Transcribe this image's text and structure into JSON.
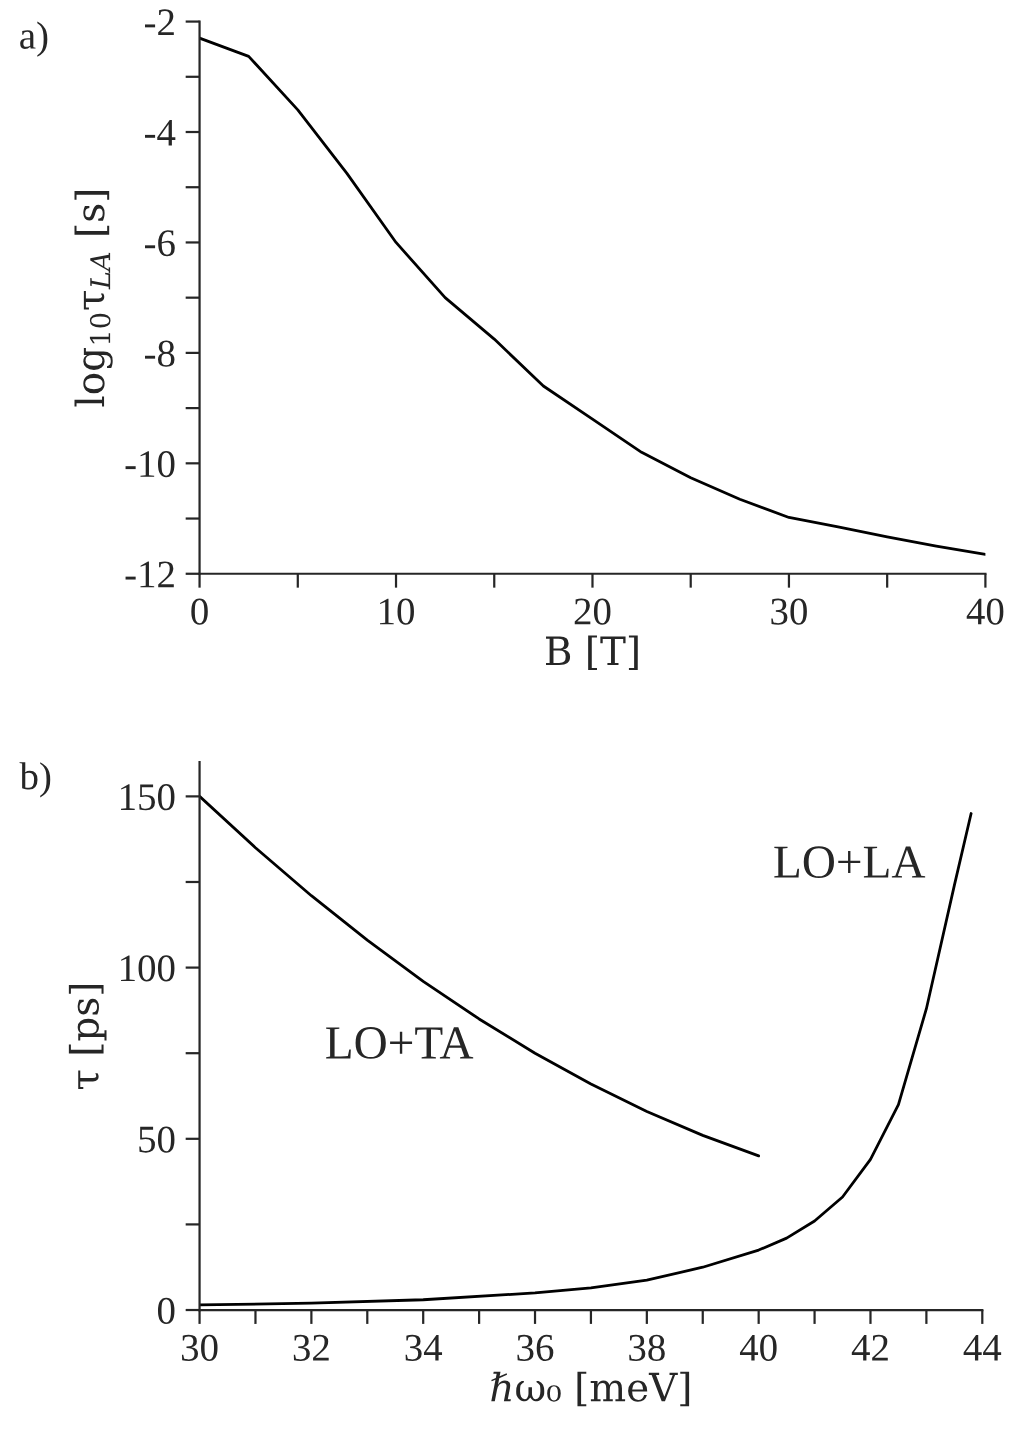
{
  "chart_data": [
    {
      "type": "line",
      "title": "a)",
      "xlabel": "B [T]",
      "ylabel": "log$_{10}$τ$_{LA}$ [s]",
      "x": [
        0,
        2.5,
        5,
        7.5,
        10,
        12.5,
        15,
        17.5,
        20,
        22.5,
        25,
        27.5,
        30,
        32.5,
        35,
        37.5,
        40
      ],
      "series": [
        {
          "color": "#000000",
          "values": [
            -2.3,
            -2.63,
            -3.6,
            -4.75,
            -6.0,
            -7.0,
            -7.75,
            -8.6,
            -9.2,
            -9.8,
            -10.26,
            -10.65,
            -10.98,
            -11.15,
            -11.33,
            -11.5,
            -11.65
          ]
        }
      ],
      "xlim": [
        0,
        40
      ],
      "ylim": [
        -12,
        -2
      ],
      "xticks": [
        0,
        {
          "value": 5,
          "label": null
        },
        10,
        {
          "value": 15,
          "label": null
        },
        20,
        {
          "value": 25,
          "label": null
        },
        30,
        {
          "value": 35,
          "label": null
        },
        40
      ],
      "yticks": [
        -12,
        {
          "value": -11,
          "label": null
        },
        -10,
        {
          "value": -9,
          "label": null
        },
        -8,
        {
          "value": -7,
          "label": null
        },
        -6,
        {
          "value": -5,
          "label": null
        },
        -4,
        {
          "value": -3,
          "label": null
        },
        -2
      ],
      "grid": false,
      "legend": false,
      "marker": "none",
      "line_style": "solid"
    },
    {
      "type": "line",
      "title": "b)",
      "xlabel": "ℏω₀ [meV]",
      "ylabel": "τ [ps]",
      "series": [
        {
          "color": "#000000",
          "x": [
            30,
            31,
            32,
            33,
            34,
            35,
            36,
            37,
            38,
            39,
            40
          ],
          "values": [
            150,
            135,
            121,
            108,
            96,
            85,
            75,
            66,
            58,
            51,
            45
          ]
        },
        {
          "color": "#000000",
          "x": [
            30,
            32,
            34,
            36,
            37,
            38,
            39,
            40,
            40.5,
            41,
            41.5,
            42,
            42.5,
            43,
            43.5,
            43.8
          ],
          "values": [
            1.5,
            2,
            3,
            5,
            6.5,
            8.7,
            12.5,
            17.5,
            21,
            26,
            33,
            44,
            60,
            88,
            124,
            145
          ]
        }
      ],
      "annotations": [
        "LO+TA",
        "LO+LA"
      ],
      "xlim": [
        30,
        44
      ],
      "ylim": [
        0,
        160
      ],
      "xticks": [
        30,
        {
          "value": 31,
          "label": null
        },
        32,
        {
          "value": 33,
          "label": null
        },
        34,
        {
          "value": 35,
          "label": null
        },
        36,
        {
          "value": 37,
          "label": null
        },
        38,
        {
          "value": 39,
          "label": null
        },
        40,
        {
          "value": 41,
          "label": null
        },
        42,
        {
          "value": 43,
          "label": null
        },
        44
      ],
      "yticks": [
        0,
        {
          "value": 25,
          "label": null
        },
        50,
        {
          "value": 75,
          "label": null
        },
        100,
        {
          "value": 125,
          "label": null
        },
        150
      ],
      "grid": false,
      "legend": false,
      "marker": "none",
      "line_style": "solid"
    }
  ]
}
